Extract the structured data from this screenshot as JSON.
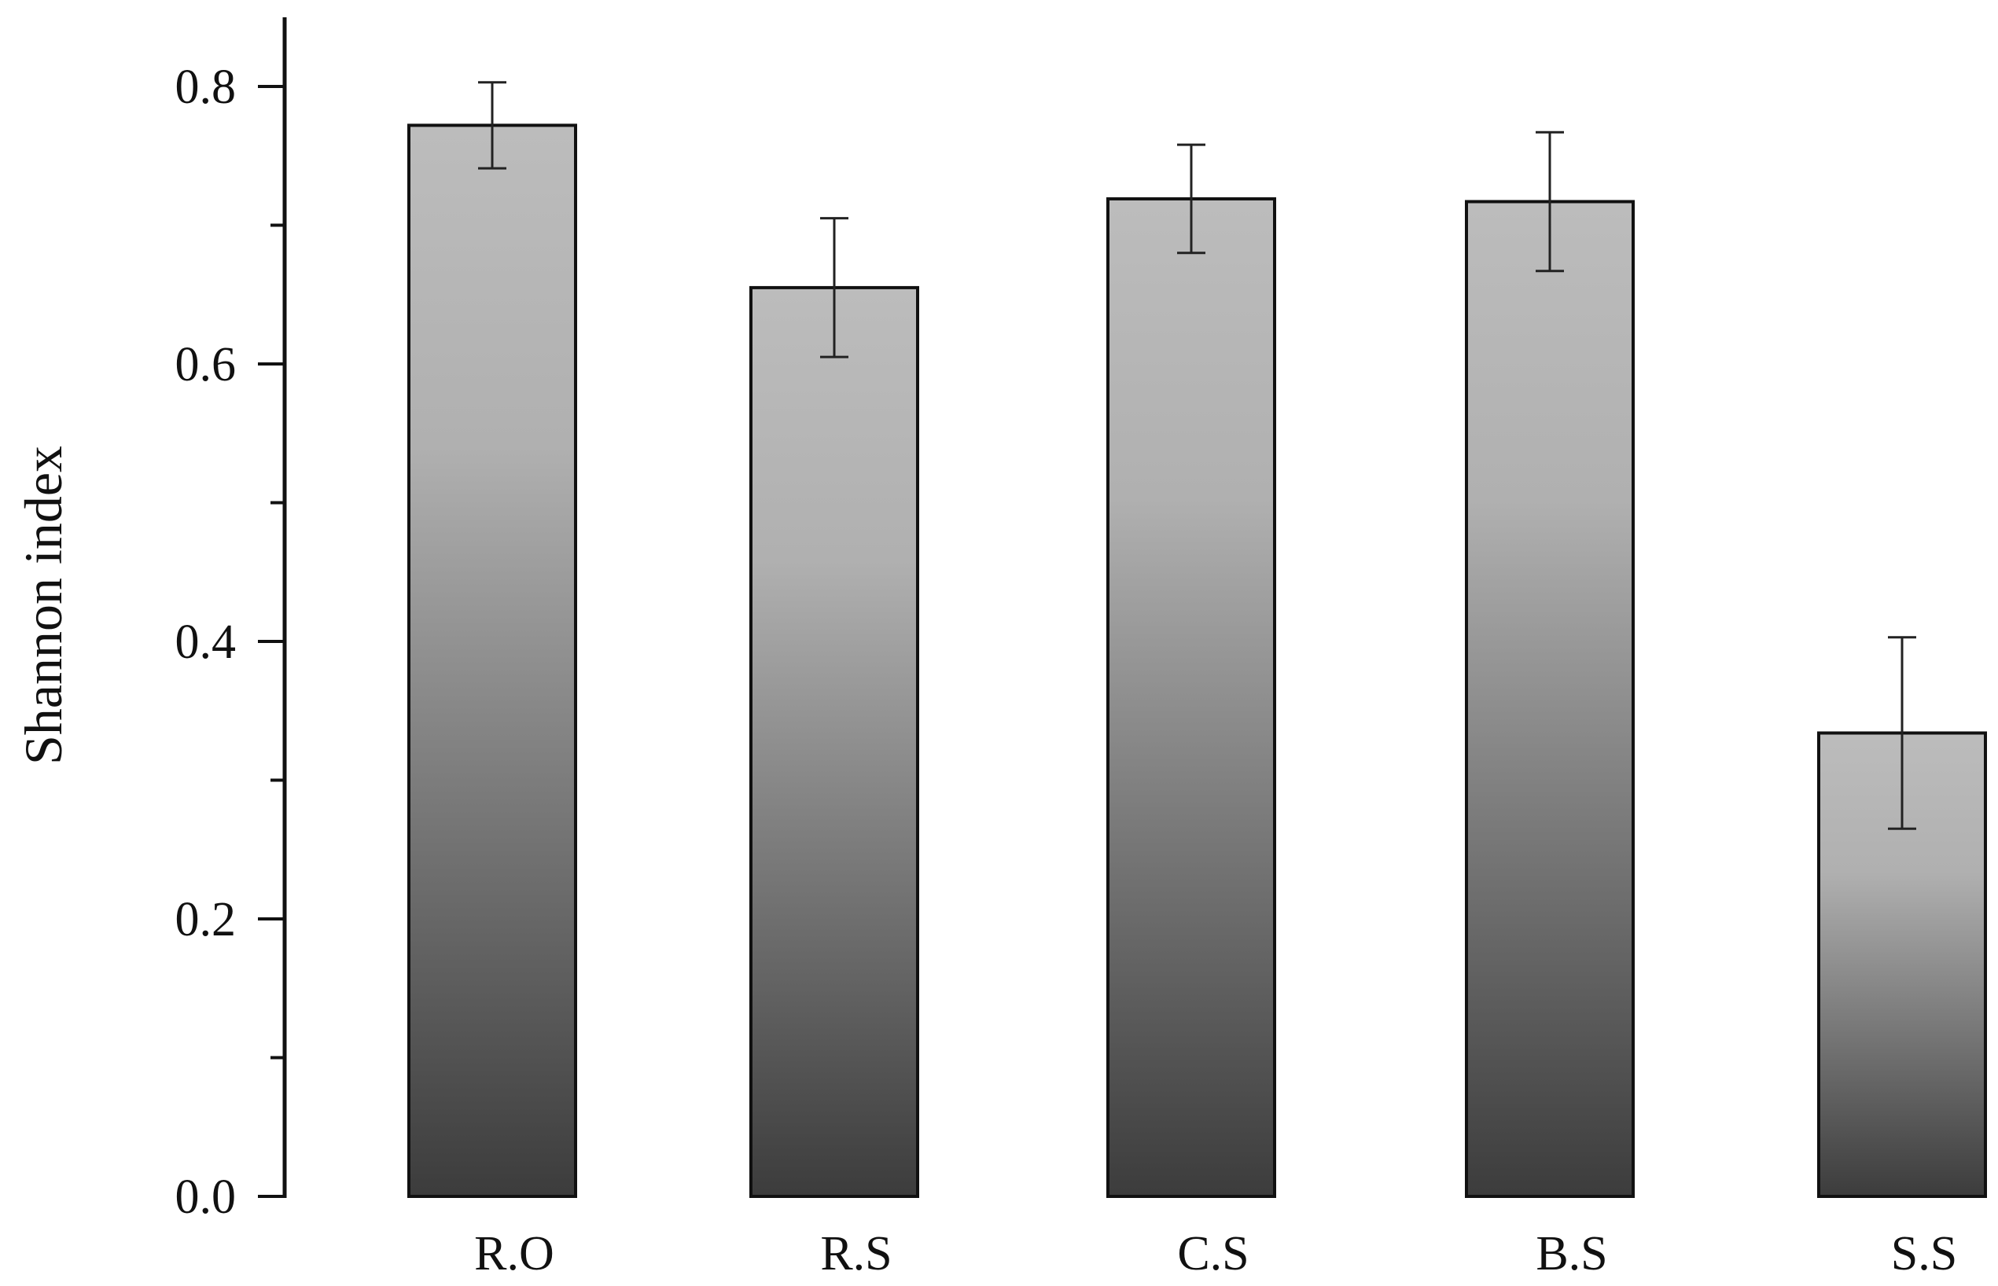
{
  "chart_data": {
    "type": "bar",
    "categories": [
      "R.O",
      "R.S",
      "C.S",
      "B.S",
      "S.S"
    ],
    "values": [
      0.772,
      0.655,
      0.719,
      0.717,
      0.334
    ],
    "errors": [
      0.031,
      0.05,
      0.039,
      0.05,
      0.069
    ],
    "title": "",
    "xlabel": "",
    "ylabel": "Shannon index",
    "ylim": [
      0.0,
      0.8
    ],
    "yticks": [
      "0.0",
      "0.2",
      "0.4",
      "0.6",
      "0.8"
    ],
    "grid": false,
    "bar_gradient": {
      "top": "#bcbcbc",
      "bottom": "#3c3c3c"
    }
  }
}
